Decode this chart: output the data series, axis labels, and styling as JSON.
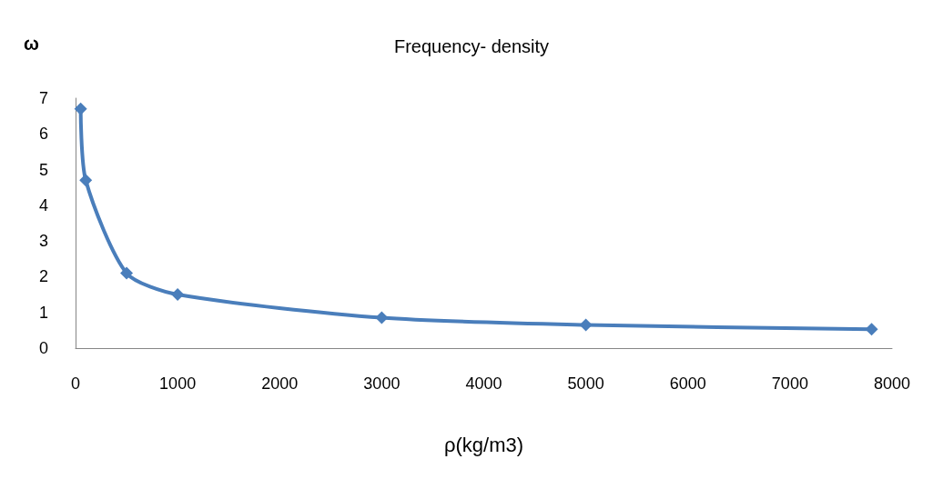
{
  "chart_data": {
    "type": "line",
    "title": "Frequency- density",
    "xlabel": "ρ(kg/m3)",
    "ylabel": "ω",
    "x": [
      50,
      100,
      500,
      1000,
      3000,
      5000,
      7800
    ],
    "series": [
      {
        "color": "#4a7ebb",
        "values": [
          6.7,
          4.7,
          2.1,
          1.5,
          0.85,
          0.65,
          0.53
        ]
      }
    ],
    "xlim": [
      0,
      8000
    ],
    "xticks": [
      0,
      1000,
      2000,
      3000,
      4000,
      5000,
      6000,
      7000,
      8000
    ],
    "ylim": [
      0,
      7
    ],
    "yticks": [
      0,
      1,
      2,
      3,
      4,
      5,
      6,
      7
    ],
    "grid": false,
    "marker": "diamond",
    "line_style": "solid"
  }
}
